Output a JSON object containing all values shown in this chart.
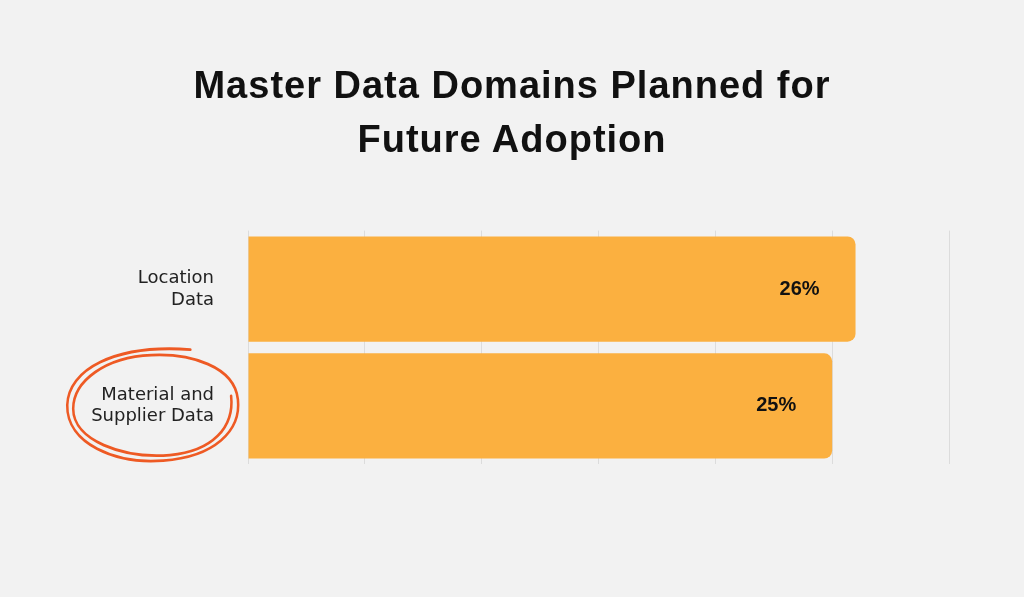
{
  "chart_data": {
    "type": "bar",
    "orientation": "horizontal",
    "title": "Master Data Domains Planned for Future Adoption",
    "categories": [
      "Location Data",
      "Material and Supplier Data"
    ],
    "values": [
      26,
      25
    ],
    "color": "#fbb040",
    "value_labels": [
      "26%",
      "25%"
    ],
    "xlim": [
      0,
      30
    ],
    "xticks": [
      {
        "value": 0,
        "label": null
      },
      {
        "value": 5,
        "label": null
      },
      {
        "value": 10,
        "label": null
      },
      {
        "value": 15,
        "label": null
      },
      {
        "value": 20,
        "label": null
      },
      {
        "value": 25,
        "label": null
      },
      {
        "value": 30,
        "label": null
      }
    ],
    "tick_labels": "y",
    "grid": "x",
    "legend": false
  }
}
